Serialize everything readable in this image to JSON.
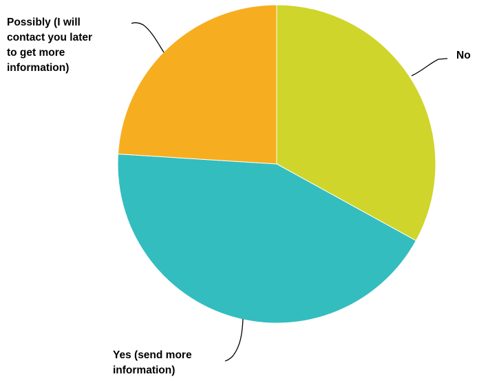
{
  "chart_data": {
    "type": "pie",
    "title": "",
    "start_angle_deg": 0,
    "direction": "clockwise",
    "slices": [
      {
        "label": "No",
        "label_lines": [
          "No"
        ],
        "value": 33,
        "color": "#cfd52a"
      },
      {
        "label": "Yes (send more information)",
        "label_lines": [
          "Yes (send more",
          "information)"
        ],
        "value": 43,
        "color": "#33bdbf"
      },
      {
        "label": "Possibly (I will contact you later to get more information)",
        "label_lines": [
          "Possibly (I will",
          "contact you later",
          "to get more",
          "information)"
        ],
        "value": 24,
        "color": "#f6ae20"
      }
    ]
  }
}
